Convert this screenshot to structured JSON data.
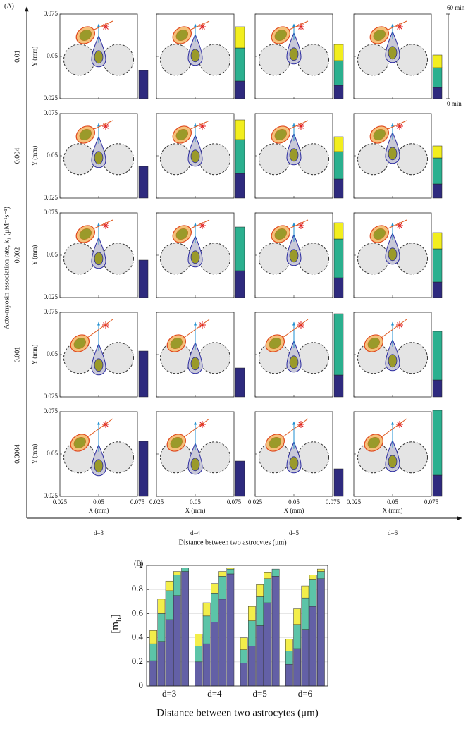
{
  "chart_data": [
    {
      "type": "phase-grid",
      "label": "(A)",
      "ylabel": "Acto-myosin association rate, k₁ (μM⁻¹s⁻¹)",
      "xlabel": "Distance between two astrocytes (μm)",
      "rows": [
        "0.01",
        "0.004",
        "0.002",
        "0.001",
        "0.0004"
      ],
      "columns": [
        "d=3",
        "d=4",
        "d=5",
        "d=6"
      ],
      "panel_xlabel": "X (mm)",
      "panel_ylabel": "Y (mm)",
      "xlim": [
        0.025,
        0.075
      ],
      "xticks": [
        0.025,
        0.05,
        0.075
      ],
      "ylim": [
        0.025,
        0.075
      ],
      "yticks": [
        0.025,
        0.05,
        0.075
      ],
      "time_lim": [
        0,
        60
      ],
      "time_ticks": [
        {
          "value": 60,
          "label": "60 min"
        },
        {
          "value": 0,
          "label": "0 min"
        }
      ],
      "series": [
        {
          "color": "#2e2a7e",
          "values": [
            [
              20,
              12.5,
              9.5,
              8
            ],
            [
              22.5,
              17.5,
              13.5,
              10
            ],
            [
              26.5,
              19,
              14,
              11
            ],
            [
              32.5,
              20.5,
              15.5,
              12
            ],
            [
              39,
              25,
              19.5,
              15
            ]
          ]
        },
        {
          "color": "#2bb08f",
          "values": [
            [
              0,
              23.5,
              17.5,
              14
            ],
            [
              0,
              24,
              19.5,
              18.5
            ],
            [
              0,
              31,
              27.5,
              23.5
            ],
            [
              0,
              0,
              43.5,
              34.5
            ],
            [
              0,
              0,
              0,
              46
            ]
          ]
        },
        {
          "color": "#f2ee1e",
          "values": [
            [
              0,
              15,
              11.5,
              9
            ],
            [
              0,
              14,
              10.5,
              8.5
            ],
            [
              0,
              0,
              11.5,
              11.5
            ],
            [
              0,
              0,
              0,
              0
            ],
            [
              0,
              0,
              0,
              0
            ]
          ]
        }
      ]
    },
    {
      "type": "stacked-bar",
      "label": "(B)",
      "ylabel": [
        "[m",
        "b",
        "]"
      ],
      "xlabel": "Distance between two astrocytes (μm)",
      "categories": [
        "d=3",
        "d=4",
        "d=5",
        "d=6"
      ],
      "ylim": [
        0,
        1
      ],
      "yticks": [
        0,
        0.2,
        0.4,
        0.6,
        0.8,
        1
      ],
      "grid": true,
      "series": [
        {
          "color": "#6360a6",
          "values": [
            [
              0.21,
              0.37,
              0.55,
              0.75,
              0.95
            ],
            [
              0.2,
              0.35,
              0.53,
              0.72,
              0.93
            ],
            [
              0.19,
              0.33,
              0.5,
              0.69,
              0.91
            ],
            [
              0.18,
              0.31,
              0.47,
              0.66,
              0.89
            ]
          ]
        },
        {
          "color": "#5cc4a8",
          "values": [
            [
              0.14,
              0.23,
              0.24,
              0.17,
              0.03
            ],
            [
              0.13,
              0.23,
              0.24,
              0.19,
              0.04
            ],
            [
              0.11,
              0.21,
              0.24,
              0.2,
              0.06
            ],
            [
              0.11,
              0.2,
              0.26,
              0.22,
              0.06
            ]
          ]
        },
        {
          "color": "#f3ee4a",
          "values": [
            [
              0.11,
              0.12,
              0.08,
              0.03,
              0
            ],
            [
              0.1,
              0.11,
              0.08,
              0.04,
              0.01
            ],
            [
              0.1,
              0.12,
              0.1,
              0.05,
              0
            ],
            [
              0.1,
              0.13,
              0.1,
              0.04,
              0.02
            ]
          ]
        }
      ]
    }
  ]
}
